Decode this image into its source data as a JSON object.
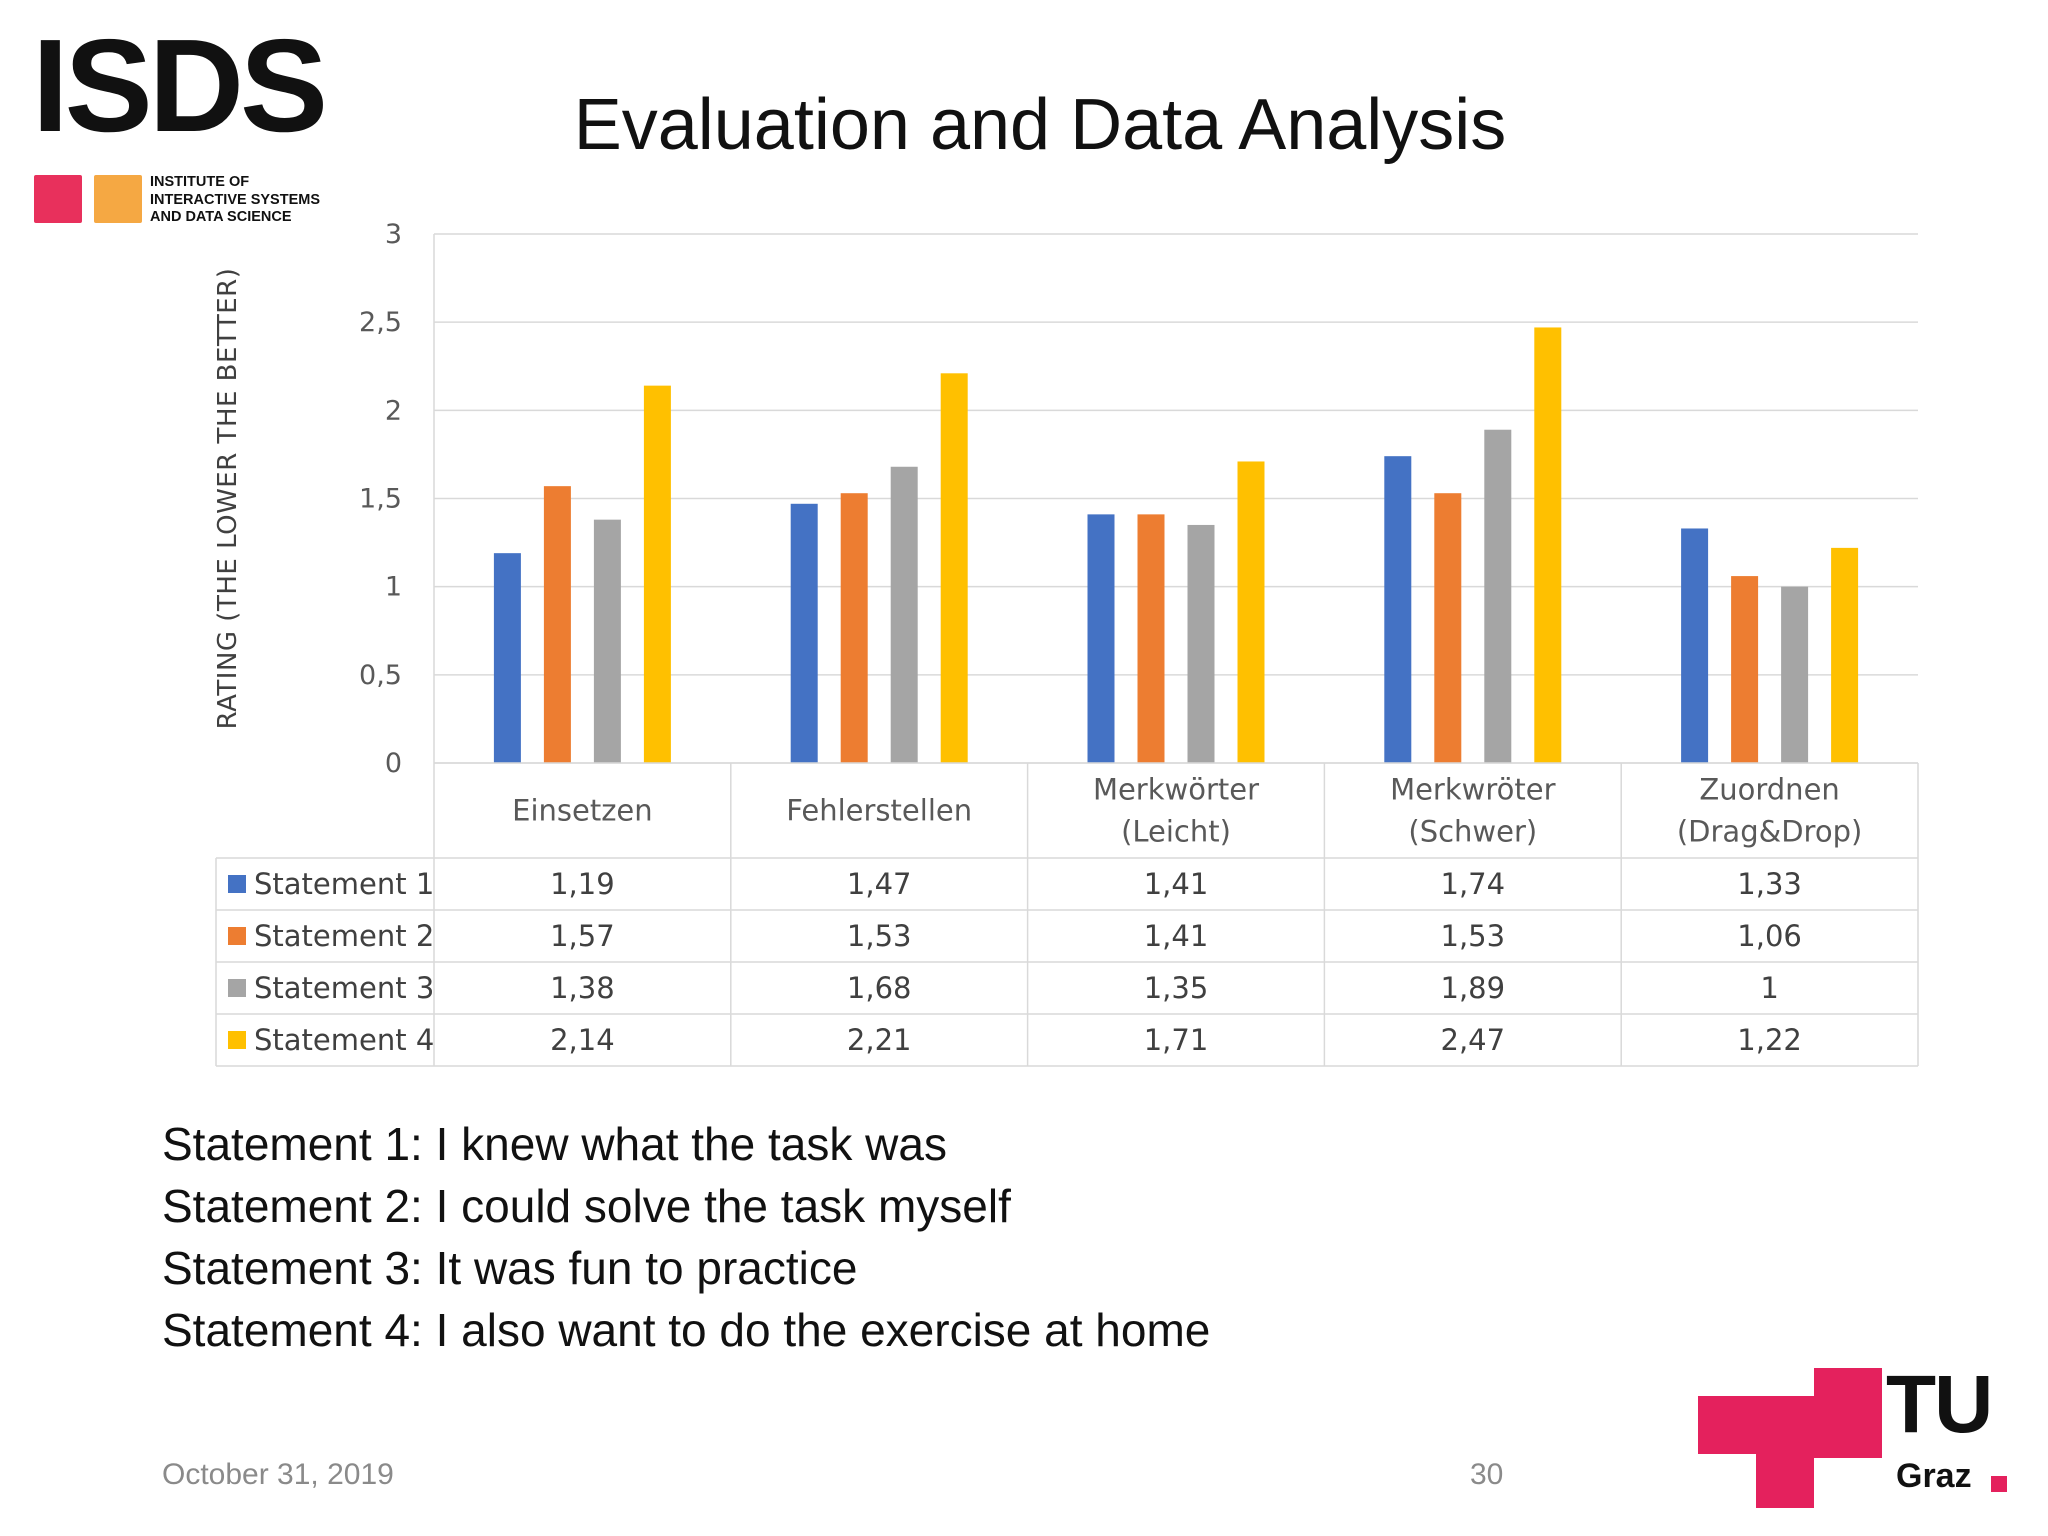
{
  "logo": {
    "wordmark": "ISDS",
    "subtitle": "INSTITUTE OF\nINTERACTIVE SYSTEMS\nAND DATA SCIENCE",
    "colors": [
      "#e8305c",
      "#f5a843"
    ]
  },
  "title": "Evaluation and Data Analysis",
  "chart_data": {
    "type": "bar",
    "title": "",
    "xlabel": "",
    "ylabel": "RATING (THE LOWER THE BETTER)",
    "ylim": [
      0,
      3
    ],
    "yticks": [
      0,
      0.5,
      1,
      1.5,
      2,
      2.5,
      3
    ],
    "ytick_labels": [
      "0",
      "0,5",
      "1",
      "1,5",
      "2",
      "2,5",
      "3"
    ],
    "grid": true,
    "legend": "data-table",
    "categories": [
      [
        "Einsetzen"
      ],
      [
        "Fehlerstellen"
      ],
      [
        "Merkwörter",
        "(Leicht)"
      ],
      [
        "Merkwröter",
        "(Schwer)"
      ],
      [
        "Zuordnen",
        "(Drag&Drop)"
      ]
    ],
    "series": [
      {
        "name": "Statement 1",
        "color": "#4472c4",
        "values": [
          1.19,
          1.47,
          1.41,
          1.74,
          1.33
        ],
        "labels": [
          "1,19",
          "1,47",
          "1,41",
          "1,74",
          "1,33"
        ]
      },
      {
        "name": "Statement 2",
        "color": "#ed7d31",
        "values": [
          1.57,
          1.53,
          1.41,
          1.53,
          1.06
        ],
        "labels": [
          "1,57",
          "1,53",
          "1,41",
          "1,53",
          "1,06"
        ]
      },
      {
        "name": "Statement 3",
        "color": "#a5a5a5",
        "values": [
          1.38,
          1.68,
          1.35,
          1.89,
          1
        ],
        "labels": [
          "1,38",
          "1,68",
          "1,35",
          "1,89",
          "1"
        ]
      },
      {
        "name": "Statement 4",
        "color": "#ffc000",
        "values": [
          2.14,
          2.21,
          1.71,
          2.47,
          1.22
        ],
        "labels": [
          "2,14",
          "2,21",
          "1,71",
          "2,47",
          "1,22"
        ]
      }
    ]
  },
  "statements": [
    "Statement 1: I knew what the task was",
    "Statement 2: I could solve the task myself",
    "Statement 3: It was fun to practice",
    "Statement 4: I also want to do the exercise at home"
  ],
  "footer": {
    "date": "October 31, 2019",
    "page_number": "30"
  },
  "university_logo": {
    "line1": "TU",
    "line2": "Graz",
    "color": "#e4215d"
  }
}
